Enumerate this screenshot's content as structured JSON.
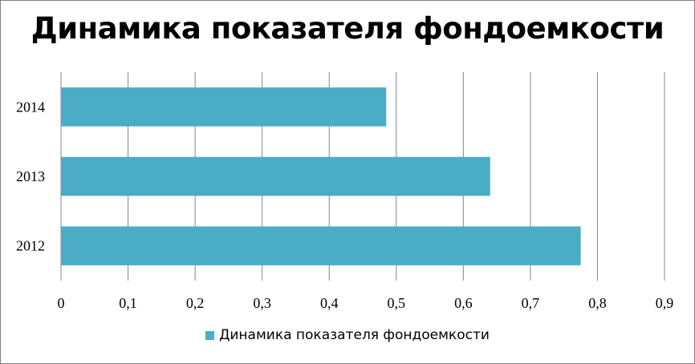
{
  "chart_data": {
    "type": "bar",
    "orientation": "horizontal",
    "title": "Динамика показателя фондоемкости",
    "categories": [
      "2012",
      "2013",
      "2014"
    ],
    "series": [
      {
        "name": "Динамика показателя фондоемкости",
        "values": [
          0.775,
          0.64,
          0.485
        ],
        "color": "#4BACC6"
      }
    ],
    "xlim": [
      0,
      0.9
    ],
    "xticks": [
      "0",
      "0,1",
      "0,2",
      "0,3",
      "0,4",
      "0,5",
      "0,6",
      "0,7",
      "0,8",
      "0,9"
    ],
    "grid": true,
    "legend_position": "bottom"
  }
}
